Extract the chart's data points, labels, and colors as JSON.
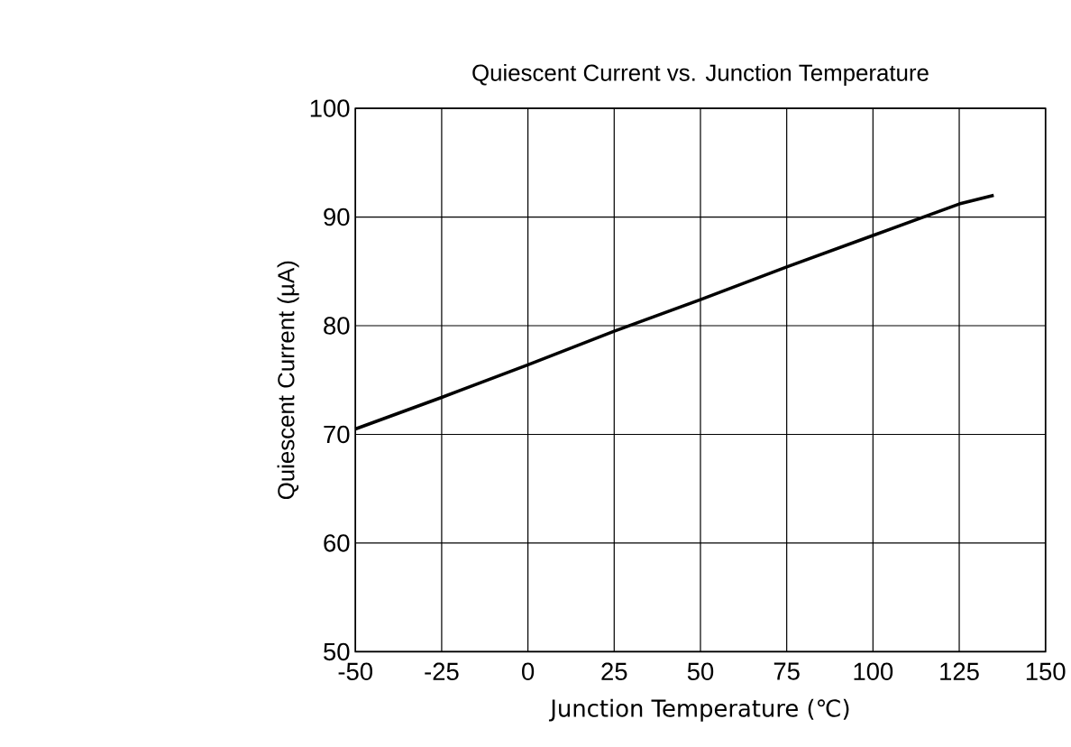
{
  "chart_data": {
    "type": "line",
    "title": "Quiescent Current vs. Junction Temperature",
    "xlabel": "Junction Temperature (℃)",
    "ylabel": "Quiescent Current (µA)",
    "x": [
      -50,
      -25,
      0,
      25,
      50,
      75,
      100,
      125,
      135
    ],
    "series": [
      {
        "color": "#000000",
        "values": [
          70.5,
          73.4,
          76.4,
          79.5,
          82.4,
          85.4,
          88.3,
          91.2,
          92.0
        ]
      }
    ],
    "xlim": [
      -50,
      150
    ],
    "xticks": [
      -50,
      -25,
      0,
      25,
      50,
      75,
      100,
      125,
      150
    ],
    "ylim": [
      50,
      100
    ],
    "yticks": [
      50,
      60,
      70,
      80,
      90,
      100
    ],
    "grid": true,
    "marker": "none",
    "line_style": "solid"
  }
}
